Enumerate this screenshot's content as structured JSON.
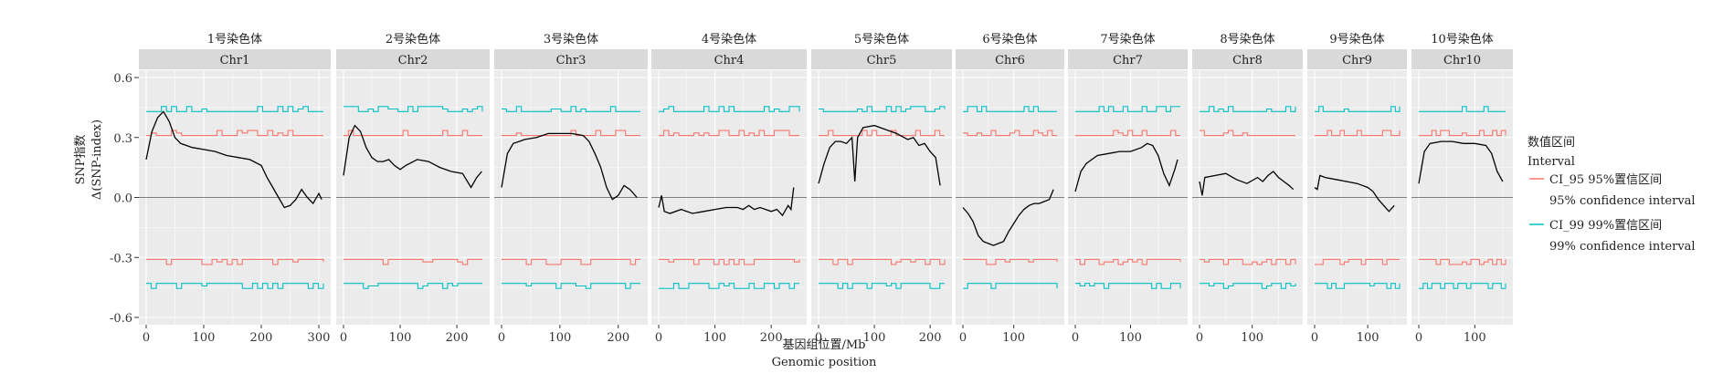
{
  "chart_data": {
    "type": "line",
    "xlabel_cn": "基因组位置/Mb",
    "xlabel_en": "Genomic position",
    "ylabel_cn": "SNP指数",
    "ylabel_en": "Δ(SNP-index)",
    "ylim": [
      -0.6,
      0.6
    ],
    "yticks": [
      "0.6",
      "0.3",
      "0.0",
      "-0.3",
      "-0.6"
    ],
    "legend": {
      "title_cn": "数值区间",
      "title_en": "Interval",
      "items": [
        {
          "label": "CI_95 95%置信区间",
          "sub": "95% confidence interval",
          "color": "#F8766D"
        },
        {
          "label": "CI_99 99%置信区间",
          "sub": "99% confidence interval",
          "color": "#00BFC4"
        }
      ]
    },
    "colors": {
      "delta": "#000000",
      "ci95": "#F8766D",
      "ci99": "#00BFC4",
      "panel_bg": "#EBEBEB",
      "strip_bg": "#D9D9D9"
    },
    "panels": [
      {
        "cn": "1号染色体",
        "en": "Chr1",
        "xmax": 308,
        "xticks": [
          0,
          100,
          200,
          300
        ],
        "delta": [
          [
            0,
            0.19
          ],
          [
            10,
            0.33
          ],
          [
            20,
            0.4
          ],
          [
            30,
            0.43
          ],
          [
            40,
            0.38
          ],
          [
            50,
            0.3
          ],
          [
            60,
            0.27
          ],
          [
            80,
            0.25
          ],
          [
            100,
            0.24
          ],
          [
            120,
            0.23
          ],
          [
            140,
            0.21
          ],
          [
            160,
            0.2
          ],
          [
            180,
            0.19
          ],
          [
            200,
            0.16
          ],
          [
            210,
            0.1
          ],
          [
            220,
            0.05
          ],
          [
            230,
            0.0
          ],
          [
            240,
            -0.05
          ],
          [
            250,
            -0.04
          ],
          [
            260,
            -0.01
          ],
          [
            270,
            0.04
          ],
          [
            280,
            0.0
          ],
          [
            290,
            -0.03
          ],
          [
            300,
            0.02
          ],
          [
            305,
            -0.01
          ]
        ],
        "ci95": 0.31,
        "ci99": 0.43
      },
      {
        "cn": "2号染色体",
        "en": "Chr2",
        "xmax": 245,
        "xticks": [
          0,
          100,
          200
        ],
        "delta": [
          [
            0,
            0.11
          ],
          [
            10,
            0.3
          ],
          [
            20,
            0.36
          ],
          [
            30,
            0.33
          ],
          [
            40,
            0.25
          ],
          [
            50,
            0.2
          ],
          [
            60,
            0.18
          ],
          [
            70,
            0.18
          ],
          [
            80,
            0.19
          ],
          [
            90,
            0.16
          ],
          [
            100,
            0.14
          ],
          [
            110,
            0.16
          ],
          [
            130,
            0.19
          ],
          [
            150,
            0.18
          ],
          [
            170,
            0.15
          ],
          [
            190,
            0.13
          ],
          [
            210,
            0.12
          ],
          [
            225,
            0.05
          ],
          [
            235,
            0.1
          ],
          [
            244,
            0.13
          ]
        ],
        "ci95": 0.31,
        "ci99": 0.43
      },
      {
        "cn": "3号染色体",
        "en": "Chr3",
        "xmax": 238,
        "xticks": [
          0,
          100,
          200
        ],
        "delta": [
          [
            0,
            0.05
          ],
          [
            10,
            0.22
          ],
          [
            20,
            0.27
          ],
          [
            30,
            0.28
          ],
          [
            40,
            0.29
          ],
          [
            60,
            0.3
          ],
          [
            80,
            0.32
          ],
          [
            100,
            0.32
          ],
          [
            120,
            0.32
          ],
          [
            140,
            0.31
          ],
          [
            150,
            0.28
          ],
          [
            160,
            0.22
          ],
          [
            170,
            0.15
          ],
          [
            180,
            0.05
          ],
          [
            190,
            -0.01
          ],
          [
            200,
            0.01
          ],
          [
            210,
            0.06
          ],
          [
            220,
            0.04
          ],
          [
            232,
            0.0
          ]
        ],
        "ci95": 0.31,
        "ci99": 0.43
      },
      {
        "cn": "4号染色体",
        "en": "Chr4",
        "xmax": 250,
        "xticks": [
          0,
          100,
          200
        ],
        "delta": [
          [
            0,
            -0.05
          ],
          [
            5,
            0.01
          ],
          [
            10,
            -0.07
          ],
          [
            20,
            -0.08
          ],
          [
            40,
            -0.06
          ],
          [
            60,
            -0.08
          ],
          [
            80,
            -0.07
          ],
          [
            100,
            -0.06
          ],
          [
            120,
            -0.05
          ],
          [
            140,
            -0.05
          ],
          [
            150,
            -0.06
          ],
          [
            160,
            -0.04
          ],
          [
            170,
            -0.06
          ],
          [
            180,
            -0.05
          ],
          [
            190,
            -0.06
          ],
          [
            200,
            -0.07
          ],
          [
            210,
            -0.06
          ],
          [
            220,
            -0.09
          ],
          [
            230,
            -0.04
          ],
          [
            235,
            -0.06
          ],
          [
            240,
            0.05
          ]
        ],
        "ci95": 0.31,
        "ci99": 0.43
      },
      {
        "cn": "5号染色体",
        "en": "Chr5",
        "xmax": 226,
        "xticks": [
          0,
          100,
          200
        ],
        "delta": [
          [
            0,
            0.07
          ],
          [
            10,
            0.17
          ],
          [
            20,
            0.25
          ],
          [
            30,
            0.28
          ],
          [
            40,
            0.28
          ],
          [
            50,
            0.27
          ],
          [
            60,
            0.3
          ],
          [
            65,
            0.08
          ],
          [
            70,
            0.3
          ],
          [
            80,
            0.35
          ],
          [
            100,
            0.36
          ],
          [
            120,
            0.34
          ],
          [
            140,
            0.32
          ],
          [
            160,
            0.29
          ],
          [
            170,
            0.3
          ],
          [
            180,
            0.26
          ],
          [
            190,
            0.27
          ],
          [
            200,
            0.23
          ],
          [
            210,
            0.2
          ],
          [
            218,
            0.06
          ]
        ],
        "ci95": 0.31,
        "ci99": 0.43
      },
      {
        "cn": "6号染色体",
        "en": "Chr6",
        "xmax": 185,
        "xticks": [
          0,
          100
        ],
        "delta": [
          [
            0,
            -0.05
          ],
          [
            10,
            -0.08
          ],
          [
            20,
            -0.12
          ],
          [
            30,
            -0.19
          ],
          [
            40,
            -0.22
          ],
          [
            50,
            -0.23
          ],
          [
            60,
            -0.24
          ],
          [
            70,
            -0.23
          ],
          [
            80,
            -0.22
          ],
          [
            90,
            -0.17
          ],
          [
            100,
            -0.13
          ],
          [
            110,
            -0.09
          ],
          [
            120,
            -0.06
          ],
          [
            130,
            -0.04
          ],
          [
            140,
            -0.03
          ],
          [
            150,
            -0.03
          ],
          [
            160,
            -0.02
          ],
          [
            170,
            -0.01
          ],
          [
            178,
            0.04
          ]
        ],
        "ci95": 0.31,
        "ci99": 0.43
      },
      {
        "cn": "7号染色体",
        "en": "Chr7",
        "xmax": 190,
        "xticks": [
          0,
          100
        ],
        "delta": [
          [
            0,
            0.03
          ],
          [
            10,
            0.13
          ],
          [
            20,
            0.17
          ],
          [
            40,
            0.21
          ],
          [
            60,
            0.22
          ],
          [
            80,
            0.23
          ],
          [
            100,
            0.23
          ],
          [
            120,
            0.25
          ],
          [
            130,
            0.27
          ],
          [
            140,
            0.26
          ],
          [
            150,
            0.21
          ],
          [
            160,
            0.12
          ],
          [
            170,
            0.06
          ],
          [
            180,
            0.14
          ],
          [
            185,
            0.19
          ]
        ],
        "ci95": 0.31,
        "ci99": 0.43
      },
      {
        "cn": "8号染色体",
        "en": "Chr8",
        "xmax": 182,
        "xticks": [
          0,
          100
        ],
        "delta": [
          [
            0,
            0.08
          ],
          [
            5,
            0.01
          ],
          [
            10,
            0.1
          ],
          [
            30,
            0.11
          ],
          [
            50,
            0.12
          ],
          [
            70,
            0.09
          ],
          [
            90,
            0.07
          ],
          [
            110,
            0.1
          ],
          [
            120,
            0.08
          ],
          [
            130,
            0.11
          ],
          [
            140,
            0.13
          ],
          [
            150,
            0.1
          ],
          [
            160,
            0.08
          ],
          [
            170,
            0.06
          ],
          [
            178,
            0.04
          ]
        ],
        "ci95": 0.31,
        "ci99": 0.43
      },
      {
        "cn": "9号染色体",
        "en": "Chr9",
        "xmax": 160,
        "xticks": [
          0,
          100
        ],
        "delta": [
          [
            0,
            0.05
          ],
          [
            5,
            0.04
          ],
          [
            10,
            0.11
          ],
          [
            20,
            0.1
          ],
          [
            40,
            0.09
          ],
          [
            60,
            0.08
          ],
          [
            80,
            0.07
          ],
          [
            100,
            0.05
          ],
          [
            110,
            0.03
          ],
          [
            120,
            -0.01
          ],
          [
            130,
            -0.04
          ],
          [
            140,
            -0.07
          ],
          [
            150,
            -0.04
          ]
        ],
        "ci95": 0.31,
        "ci99": 0.43
      },
      {
        "cn": "10号染色体",
        "en": "Chr10",
        "xmax": 155,
        "xticks": [
          0,
          100
        ],
        "delta": [
          [
            0,
            0.07
          ],
          [
            10,
            0.23
          ],
          [
            20,
            0.27
          ],
          [
            40,
            0.28
          ],
          [
            60,
            0.28
          ],
          [
            80,
            0.27
          ],
          [
            100,
            0.27
          ],
          [
            120,
            0.26
          ],
          [
            130,
            0.22
          ],
          [
            140,
            0.13
          ],
          [
            150,
            0.08
          ]
        ],
        "ci95": 0.31,
        "ci99": 0.43
      }
    ]
  }
}
